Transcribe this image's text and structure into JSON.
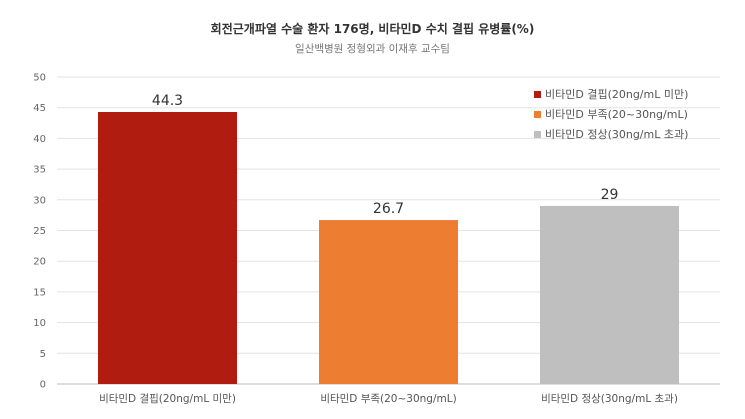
{
  "chart_data": {
    "type": "bar",
    "title": "회전근개파열 수술 환자 176명, 비타민D 수치 결핍 유병률(%)",
    "subtitle": "일산백병원 정형외과 이재후 교수팀",
    "categories": [
      "비타민D 결핍(20ng/mL 미만)",
      "비타민D 부족(20~30ng/mL)",
      "비타민D 정상(30ng/mL 초과)"
    ],
    "values": [
      44.3,
      26.7,
      29
    ],
    "data_labels": [
      "44.3",
      "26.7",
      "29"
    ],
    "colors": [
      "#b01c0f",
      "#ed7d31",
      "#bfbfbf"
    ],
    "legend": [
      "비타민D 결핍(20ng/mL 미만)",
      "비타민D 부족(20~30ng/mL)",
      "비타민D 정상(30ng/mL 초과)"
    ],
    "legend_position": "top-right",
    "yticks": [
      "0",
      "5",
      "10",
      "15",
      "20",
      "25",
      "30",
      "35",
      "40",
      "45",
      "50"
    ],
    "ylim": [
      0,
      50
    ],
    "grid": true,
    "xlabel": "",
    "ylabel": ""
  }
}
